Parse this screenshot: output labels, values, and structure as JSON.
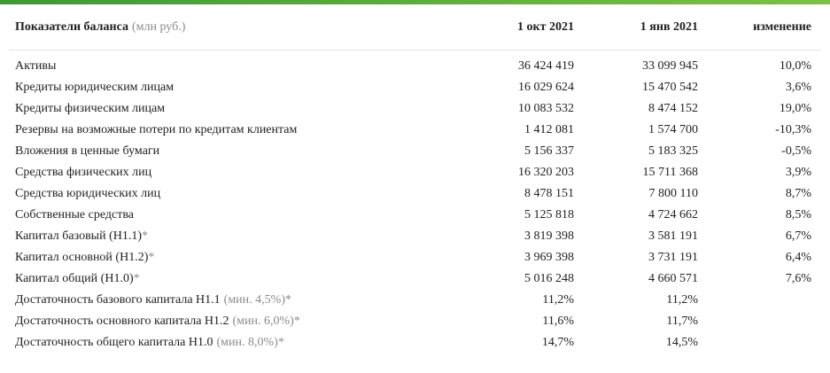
{
  "table": {
    "header": {
      "title": "Показатели баланса",
      "unit": "(млн руб.)",
      "columns": [
        "1 окт 2021",
        "1 янв 2021",
        "изменение"
      ]
    },
    "rows": [
      {
        "label": "Активы",
        "values": [
          "36 424 419",
          "33 099 945",
          "10,0%"
        ]
      },
      {
        "label": "Кредиты юридическим лицам",
        "values": [
          "16 029 624",
          "15 470 542",
          "3,6%"
        ]
      },
      {
        "label": "Кредиты физическим лицам",
        "values": [
          "10 083 532",
          "8 474 152",
          "19,0%"
        ]
      },
      {
        "label": "Резервы на возможные потери по кредитам клиентам",
        "values": [
          "1 412 081",
          "1 574 700",
          "-10,3%"
        ]
      },
      {
        "label": "Вложения в ценные бумаги",
        "values": [
          "5 156 337",
          "5 183 325",
          "-0,5%"
        ]
      },
      {
        "label": "Средства физических лиц",
        "values": [
          "16 320 203",
          "15 711 368",
          "3,9%"
        ]
      },
      {
        "label": "Средства юридических лиц",
        "values": [
          "8 478 151",
          "7 800 110",
          "8,7%"
        ]
      },
      {
        "label": "Собственные средства",
        "values": [
          "5 125 818",
          "4 724 662",
          "8,5%"
        ]
      },
      {
        "label": "Капитал базовый (Н1.1)",
        "note": "*",
        "values": [
          "3 819 398",
          "3 581 191",
          "6,7%"
        ]
      },
      {
        "label": "Капитал основной (Н1.2)",
        "note": "*",
        "values": [
          "3 969 398",
          "3 731 191",
          "6,4%"
        ]
      },
      {
        "label": "Капитал общий (Н1.0)",
        "note": "*",
        "values": [
          "5 016 248",
          "4 660 571",
          "7,6%"
        ]
      },
      {
        "label": "Достаточность базового капитала Н1.1",
        "note": "(мин. 4,5%)*",
        "values": [
          "11,2%",
          "11,2%"
        ]
      },
      {
        "label": "Достаточность основного капитала Н1.2",
        "note": "(мин. 6,0%)*",
        "values": [
          "11,6%",
          "11,7%"
        ]
      },
      {
        "label": "Достаточность общего капитала Н1.0",
        "note": "(мин. 8,0%)*",
        "values": [
          "14,7%",
          "14,5%"
        ]
      }
    ]
  }
}
